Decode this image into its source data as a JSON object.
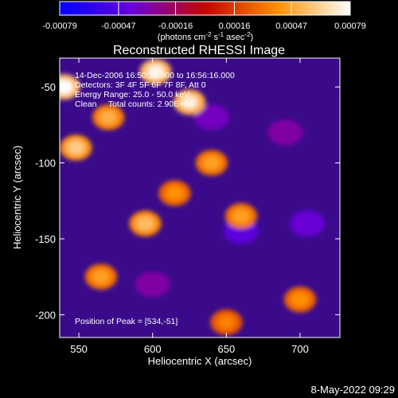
{
  "chart_data": {
    "type": "heatmap",
    "title": "Reconstructed RHESSI Image",
    "xlabel": "Heliocentric X (arcsec)",
    "ylabel": "Heliocentric Y (arcsec)",
    "xlim": [
      537,
      727
    ],
    "ylim": [
      -215,
      -31
    ],
    "xticks": [
      "550",
      "600",
      "650",
      "700"
    ],
    "xtick_values": [
      550,
      600,
      650,
      700
    ],
    "yticks": [
      "-50",
      "-100",
      "-150",
      "-200"
    ],
    "ytick_values": [
      -50,
      -100,
      -150,
      -200
    ],
    "colorbar": {
      "min": -0.00079,
      "max": 0.00079,
      "tick_labels": [
        "-0.00079",
        "-0.00047",
        "-0.00016",
        "0.00016",
        "0.00047",
        "0.00079"
      ],
      "tick_values": [
        -0.00079,
        -0.00047,
        -0.00016,
        0.00016,
        0.00047,
        0.00079
      ],
      "unit_label": "(photons cm",
      "unit_exp1": "-2",
      "unit_mid": " s",
      "unit_exp2": "-1",
      "unit_mid2": " asec",
      "unit_exp3": "-2",
      "unit_close": ")",
      "colormap": "blue-purple-red-yellow-white"
    },
    "annotations": {
      "time": "14-Dec-2006 16:50:16.000 to 16:56:16.000",
      "detectors": "Detectors: 3F 4F 5F 6F 7F 8F, Att 0",
      "energy": "Energy Range: 25.0 - 50.0 keV",
      "clean": "Clean     Total counts: 2.90E+04",
      "peak": "Position of Peak = [534,-51]"
    },
    "bright_regions": [
      {
        "x": 540,
        "y": -50,
        "value": 0.00079
      },
      {
        "x": 602,
        "y": -40,
        "value": 0.00075
      },
      {
        "x": 625,
        "y": -60,
        "value": 0.00072
      },
      {
        "x": 548,
        "y": -90,
        "value": 0.0006
      },
      {
        "x": 570,
        "y": -70,
        "value": 0.0005
      },
      {
        "x": 595,
        "y": -140,
        "value": 0.00055
      },
      {
        "x": 640,
        "y": -100,
        "value": 0.00045
      },
      {
        "x": 660,
        "y": -135,
        "value": 0.00045
      },
      {
        "x": 700,
        "y": -190,
        "value": 0.0004
      },
      {
        "x": 565,
        "y": -175,
        "value": 0.00045
      },
      {
        "x": 615,
        "y": -120,
        "value": 0.0004
      },
      {
        "x": 650,
        "y": -205,
        "value": 0.00035
      }
    ],
    "dark_regions": [
      {
        "x": 660,
        "y": -145,
        "value": -0.00045
      },
      {
        "x": 705,
        "y": -140,
        "value": -0.0004
      },
      {
        "x": 640,
        "y": -70,
        "value": -0.00035
      },
      {
        "x": 600,
        "y": -180,
        "value": -0.0003
      },
      {
        "x": 690,
        "y": -80,
        "value": -0.0003
      }
    ]
  },
  "footer": {
    "date": "8-May-2022 09:29"
  }
}
